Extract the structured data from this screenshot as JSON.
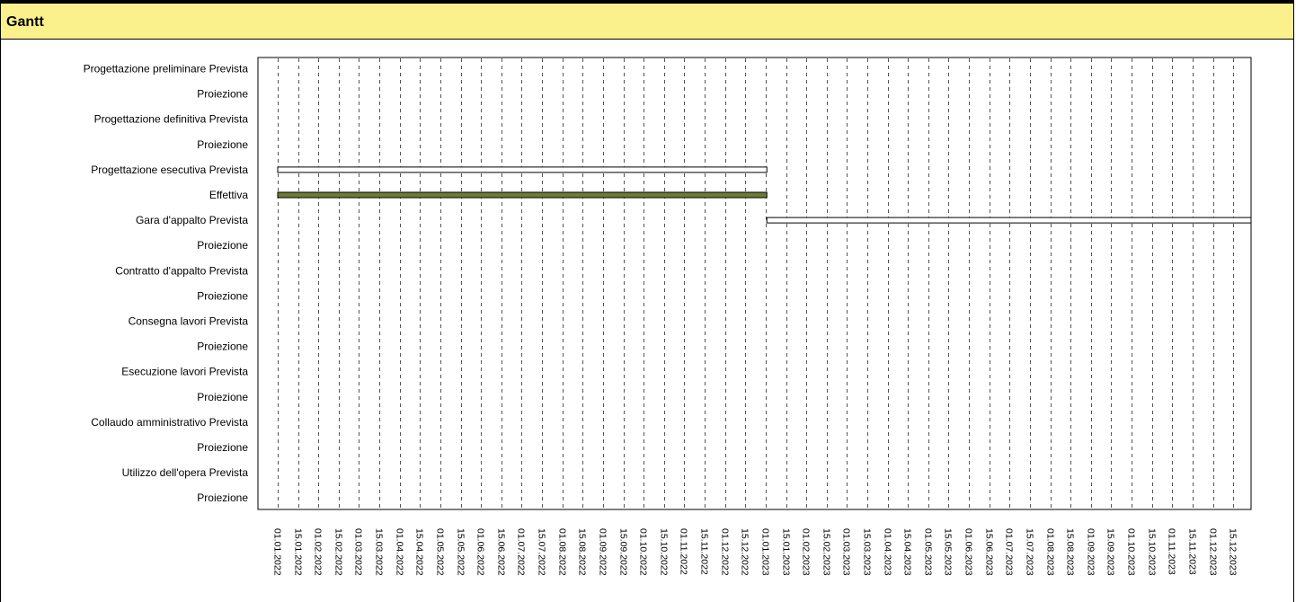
{
  "panel": {
    "title": "Gantt"
  },
  "chart_data": {
    "type": "gantt",
    "rows": [
      "Progettazione preliminare Prevista",
      "Proiezione",
      "Progettazione definitiva Prevista",
      "Proiezione",
      "Progettazione esecutiva Prevista",
      "Effettiva",
      "Gara d'appalto Prevista",
      "Proiezione",
      "Contratto d'appalto Prevista",
      "Proiezione",
      "Consegna lavori Prevista",
      "Proiezione",
      "Esecuzione lavori Prevista",
      "Proiezione",
      "Collaudo amministrativo Prevista",
      "Proiezione",
      "Utilizzo dell'opera Prevista",
      "Proiezione"
    ],
    "x_ticks": [
      "01.01.2022",
      "15.01.2022",
      "01.02.2022",
      "15.02.2022",
      "01.03.2022",
      "15.03.2022",
      "01.04.2022",
      "15.04.2022",
      "01.05.2022",
      "15.05.2022",
      "01.06.2022",
      "15.06.2022",
      "01.07.2022",
      "15.07.2022",
      "01.08.2022",
      "15.08.2022",
      "01.09.2022",
      "15.09.2022",
      "01.10.2022",
      "15.10.2022",
      "01.11.2022",
      "15.11.2022",
      "01.12.2022",
      "15.12.2022",
      "01.01.2023",
      "15.01.2023",
      "01.02.2023",
      "15.02.2023",
      "01.03.2023",
      "15.03.2023",
      "01.04.2023",
      "15.04.2023",
      "01.05.2023",
      "15.05.2023",
      "01.06.2023",
      "15.06.2023",
      "01.07.2023",
      "15.07.2023",
      "01.08.2023",
      "15.08.2023",
      "01.09.2023",
      "15.09.2023",
      "01.10.2023",
      "15.10.2023",
      "01.11.2023",
      "15.11.2023",
      "01.12.2023",
      "15.12.2023"
    ],
    "xlim": [
      "01.01.2022",
      "31.12.2023"
    ],
    "grid": true,
    "bars": [
      {
        "row": 4,
        "start": "01.01.2022",
        "end": "01.01.2023",
        "style": "planned"
      },
      {
        "row": 5,
        "start": "01.01.2022",
        "end": "01.01.2023",
        "style": "actual"
      },
      {
        "row": 6,
        "start": "01.01.2023",
        "end": "31.12.2023",
        "style": "planned"
      }
    ],
    "colors": {
      "planned": "#ffffff",
      "actual": "#6b7a34",
      "outline": "#000000"
    }
  }
}
